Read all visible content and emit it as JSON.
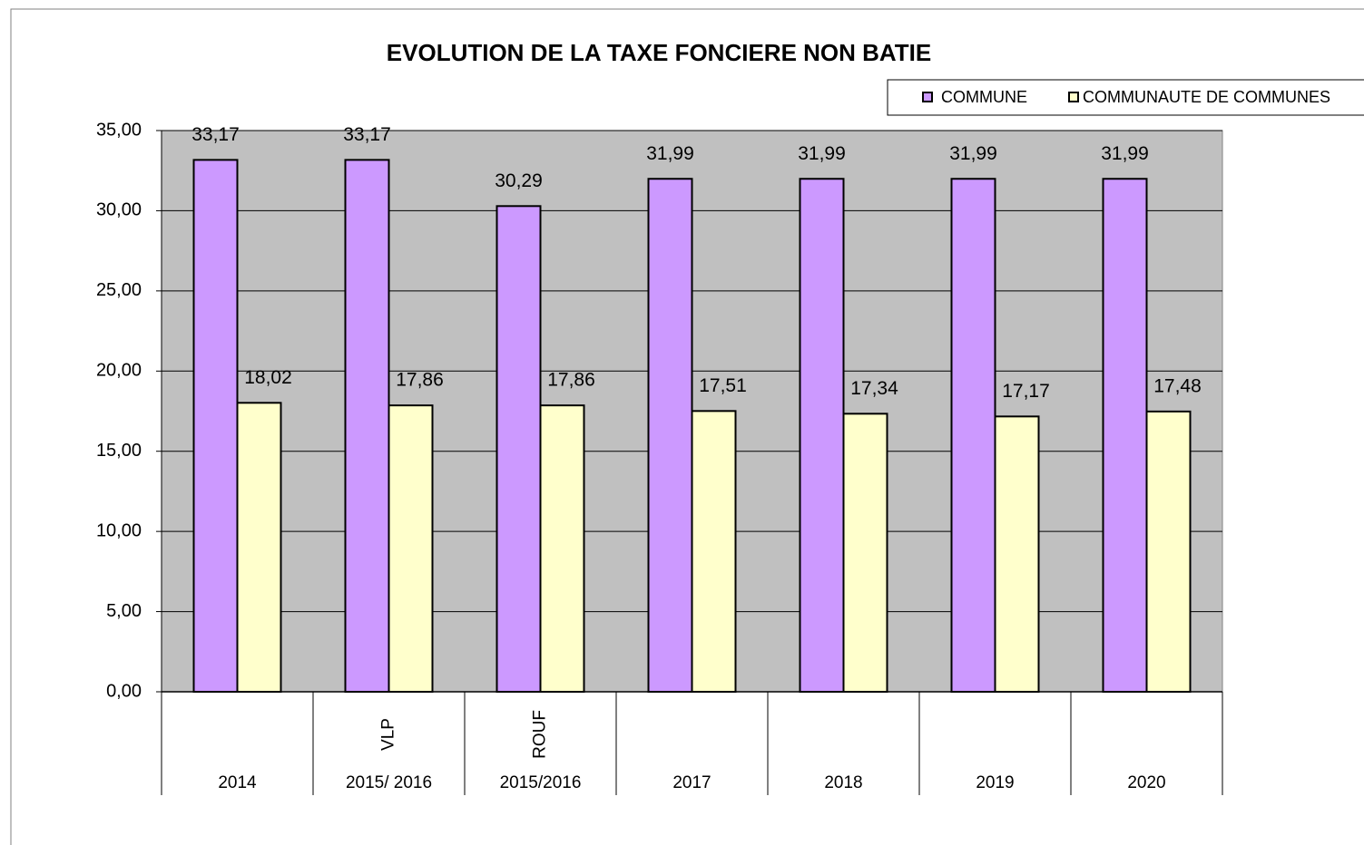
{
  "chart_data": {
    "type": "bar",
    "title": "EVOLUTION DE LA TAXE FONCIERE NON BATIE",
    "categories": [
      "2014",
      "2015/ 2016",
      "2015/2016",
      "2017",
      "2018",
      "2019",
      "2020"
    ],
    "sub_labels": [
      null,
      "VLP",
      "ROUF",
      null,
      null,
      null,
      null
    ],
    "series": [
      {
        "name": "COMMUNE",
        "color": "#cc99ff",
        "values": [
          33.17,
          33.17,
          30.29,
          31.99,
          31.99,
          31.99,
          31.99
        ],
        "value_labels": [
          "33,17",
          "33,17",
          "30,29",
          "31,99",
          "31,99",
          "31,99",
          "31,99"
        ]
      },
      {
        "name": "COMMUNAUTE DE COMMUNES",
        "color": "#ffffcc",
        "values": [
          18.02,
          17.86,
          17.86,
          17.51,
          17.34,
          17.17,
          17.48
        ],
        "value_labels": [
          "18,02",
          "17,86",
          "17,86",
          "17,51",
          "17,34",
          "17,17",
          "17,48"
        ]
      }
    ],
    "ylim": [
      0,
      35
    ],
    "yticks": [
      {
        "value": 0,
        "label": "0,00"
      },
      {
        "value": 5,
        "label": "5,00"
      },
      {
        "value": 10,
        "label": "10,00"
      },
      {
        "value": 15,
        "label": "15,00"
      },
      {
        "value": 20,
        "label": "20,00"
      },
      {
        "value": 25,
        "label": "25,00"
      },
      {
        "value": 30,
        "label": "30,00"
      },
      {
        "value": 35,
        "label": "35,00"
      }
    ],
    "grid": true,
    "legend": "top-right"
  }
}
